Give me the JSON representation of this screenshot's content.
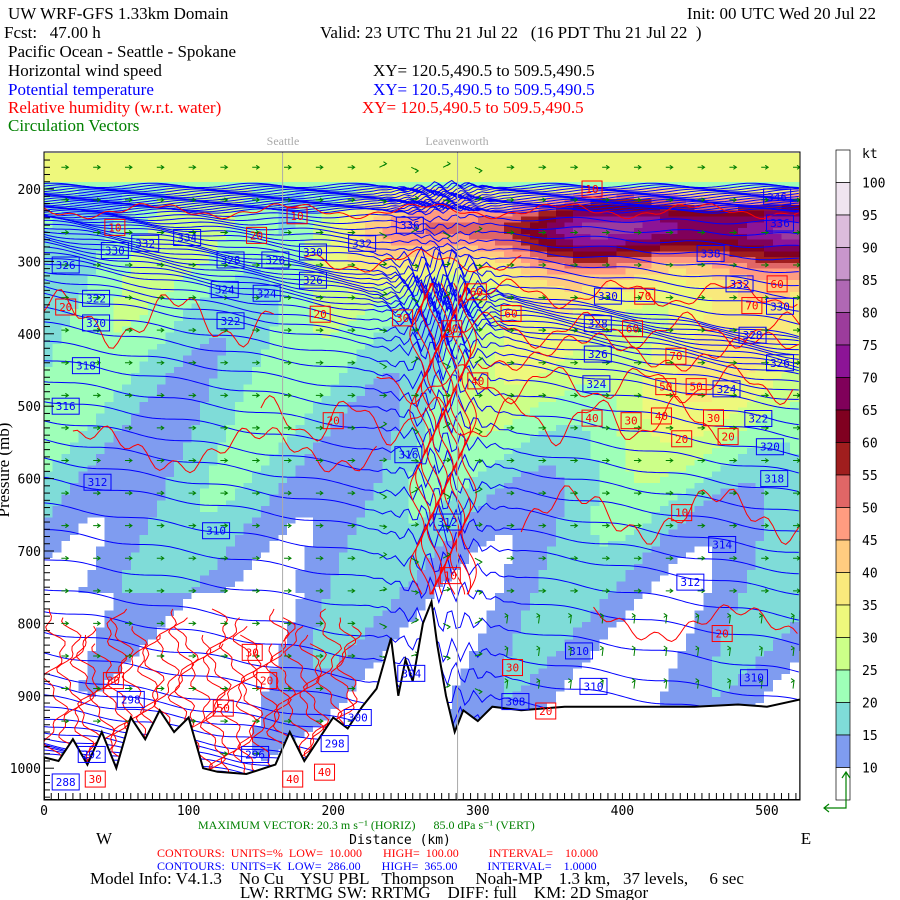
{
  "header": {
    "title": "UW WRF-GFS 1.33km Domain",
    "init": "Init: 00 UTC Wed 20 Jul 22",
    "fcst": "Fcst:   47.00 h",
    "valid": "Valid: 23 UTC Thu 21 Jul 22   (16 PDT Thu 21 Jul 22  )",
    "route": "Pacific Ocean - Seattle - Spokane",
    "field_wind": "Horizontal wind speed",
    "field_theta": "Potential temperature",
    "field_rh": "Relative humidity (w.r.t. water)",
    "field_vectors": "Circulation Vectors",
    "xy_wind": "XY= 120.5,490.5 to 509.5,490.5",
    "xy_theta": "XY= 120.5,490.5 to 509.5,490.5",
    "xy_rh": "XY= 120.5,490.5 to 509.5,490.5"
  },
  "colors": {
    "wind_text": "#000000",
    "theta": "#0000ff",
    "rh": "#ff0000",
    "vectors": "#008000",
    "terrain": "#ffffff",
    "markers": "#aaaaaa"
  },
  "footer": {
    "max_vector": "MAXIMUM VECTOR: 20.3 m s⁻¹ (HORIZ)      85.0 dPa s⁻¹ (VERT)",
    "rh_contours": "CONTOURS:  UNITS=%  LOW=  10.000       HIGH=  100.00          INTERVAL=    10.000",
    "theta_contours": "CONTOURS:  UNITS=K  LOW=  286.00       HIGH=  365.00          INTERVAL=    1.0000",
    "model_info": "Model Info: V4.1.3    No Cu    YSU PBL   Thompson     Noah-MP    1.3 km,   37 levels,     6 sec",
    "physics": "LW: RRTMG SW: RRTMG    DIFF: full    KM: 2D Smagor",
    "west": "W",
    "east": "E"
  },
  "chart_data": {
    "type": "heatmap",
    "subtype": "vertical cross-section",
    "xlabel": "Distance (km)",
    "ylabel": "Pressure (mb)",
    "xlim": [
      0,
      523
    ],
    "ylim": [
      1044,
      150
    ],
    "xticks": [
      0,
      100,
      200,
      300,
      400,
      500
    ],
    "yticks": [
      200,
      300,
      400,
      500,
      600,
      700,
      800,
      900,
      1000
    ],
    "ytick_labels": [
      "200",
      "300",
      "400",
      "500",
      "600",
      "700",
      "800",
      "900",
      "1000"
    ],
    "location_markers": [
      {
        "name": "Seattle",
        "km": 165
      },
      {
        "name": "Leavenworth",
        "km": 286
      }
    ],
    "colorbar": {
      "units": "kt",
      "levels": [
        10,
        15,
        20,
        25,
        30,
        35,
        40,
        45,
        50,
        55,
        60,
        65,
        70,
        75,
        80,
        85,
        90,
        95,
        100
      ],
      "colors": [
        "#ffffff",
        "#7f9cf0",
        "#7fdcd8",
        "#9effb8",
        "#ccff88",
        "#eef87c",
        "#f9e97c",
        "#ffcc80",
        "#ff9c80",
        "#e06666",
        "#a01e1e",
        "#800020",
        "#80005a",
        "#8c1496",
        "#9c3c9c",
        "#b068b4",
        "#c896cc",
        "#dcbcdc",
        "#f0e4f0",
        "#ffffff"
      ]
    },
    "theta_contours": {
      "units": "K",
      "low": 286,
      "high": 365,
      "interval": 1
    },
    "rh_contours": {
      "units": "%",
      "low": 10,
      "high": 100,
      "interval": 10
    },
    "surface_pressure": [
      [
        0,
        985
      ],
      [
        10,
        990
      ],
      [
        20,
        960
      ],
      [
        30,
        995
      ],
      [
        40,
        950
      ],
      [
        50,
        1000
      ],
      [
        60,
        930
      ],
      [
        70,
        960
      ],
      [
        80,
        920
      ],
      [
        90,
        950
      ],
      [
        100,
        930
      ],
      [
        110,
        1000
      ],
      [
        120,
        1005
      ],
      [
        140,
        1008
      ],
      [
        160,
        995
      ],
      [
        170,
        950
      ],
      [
        180,
        990
      ],
      [
        190,
        960
      ],
      [
        200,
        930
      ],
      [
        210,
        945
      ],
      [
        220,
        915
      ],
      [
        230,
        890
      ],
      [
        240,
        820
      ],
      [
        245,
        900
      ],
      [
        250,
        850
      ],
      [
        255,
        880
      ],
      [
        262,
        800
      ],
      [
        268,
        770
      ],
      [
        272,
        830
      ],
      [
        278,
        900
      ],
      [
        284,
        950
      ],
      [
        290,
        920
      ],
      [
        300,
        935
      ],
      [
        310,
        915
      ],
      [
        330,
        920
      ],
      [
        360,
        915
      ],
      [
        400,
        915
      ],
      [
        450,
        915
      ],
      [
        480,
        912
      ],
      [
        500,
        915
      ],
      [
        523,
        905
      ]
    ],
    "theta_labels": [
      {
        "km": 49,
        "p": 285,
        "v": "330"
      },
      {
        "km": 70,
        "p": 275,
        "v": "332"
      },
      {
        "km": 99,
        "p": 267,
        "v": "334"
      },
      {
        "km": 15,
        "p": 305,
        "v": "326"
      },
      {
        "km": 36,
        "p": 351,
        "v": "322"
      },
      {
        "km": 36,
        "p": 385,
        "v": "320"
      },
      {
        "km": 29,
        "p": 444,
        "v": "318"
      },
      {
        "km": 15,
        "p": 500,
        "v": "316"
      },
      {
        "km": 37,
        "p": 605,
        "v": "312"
      },
      {
        "km": 119,
        "p": 672,
        "v": "310"
      },
      {
        "km": 129,
        "p": 298,
        "v": "328"
      },
      {
        "km": 160,
        "p": 298,
        "v": "326"
      },
      {
        "km": 186,
        "p": 287,
        "v": "330"
      },
      {
        "km": 186,
        "p": 326,
        "v": "326"
      },
      {
        "km": 125,
        "p": 339,
        "v": "324"
      },
      {
        "km": 154,
        "p": 344,
        "v": "324"
      },
      {
        "km": 129,
        "p": 382,
        "v": "322"
      },
      {
        "km": 220,
        "p": 275,
        "v": "332"
      },
      {
        "km": 252,
        "p": 567,
        "v": "316"
      },
      {
        "km": 279,
        "p": 660,
        "v": "312"
      },
      {
        "km": 254,
        "p": 869,
        "v": "304"
      },
      {
        "km": 217,
        "p": 930,
        "v": "300"
      },
      {
        "km": 201,
        "p": 966,
        "v": "298"
      },
      {
        "km": 146,
        "p": 981,
        "v": "296"
      },
      {
        "km": 60,
        "p": 905,
        "v": "298"
      },
      {
        "km": 33,
        "p": 981,
        "v": "292"
      },
      {
        "km": 15,
        "p": 1019,
        "v": "288"
      },
      {
        "km": 326,
        "p": 908,
        "v": "308"
      },
      {
        "km": 370,
        "p": 838,
        "v": "310"
      },
      {
        "km": 380,
        "p": 887,
        "v": "310"
      },
      {
        "km": 491,
        "p": 875,
        "v": "310"
      },
      {
        "km": 447,
        "p": 743,
        "v": "312"
      },
      {
        "km": 469,
        "p": 691,
        "v": "314"
      },
      {
        "km": 505,
        "p": 600,
        "v": "318"
      },
      {
        "km": 502,
        "p": 556,
        "v": "320"
      },
      {
        "km": 494,
        "p": 517,
        "v": "322"
      },
      {
        "km": 509,
        "p": 440,
        "v": "326"
      },
      {
        "km": 490,
        "p": 402,
        "v": "328"
      },
      {
        "km": 509,
        "p": 362,
        "v": "330"
      },
      {
        "km": 481,
        "p": 331,
        "v": "332"
      },
      {
        "km": 461,
        "p": 289,
        "v": "338"
      },
      {
        "km": 383,
        "p": 386,
        "v": "328"
      },
      {
        "km": 383,
        "p": 428,
        "v": "326"
      },
      {
        "km": 382,
        "p": 469,
        "v": "324"
      },
      {
        "km": 472,
        "p": 476,
        "v": "324"
      },
      {
        "km": 253,
        "p": 250,
        "v": "336"
      },
      {
        "km": 507,
        "p": 211,
        "v": "346"
      },
      {
        "km": 509,
        "p": 247,
        "v": "336"
      },
      {
        "km": 390,
        "p": 348,
        "v": "330"
      }
    ],
    "rh_labels": [
      {
        "km": 49,
        "p": 253,
        "v": "10"
      },
      {
        "km": 175,
        "p": 237,
        "v": "10"
      },
      {
        "km": 15,
        "p": 363,
        "v": "20"
      },
      {
        "km": 147,
        "p": 311,
        "v": "20"
      },
      {
        "km": 191,
        "p": 326,
        "v": "20"
      },
      {
        "km": 248,
        "p": 378,
        "v": "30"
      },
      {
        "km": 282,
        "p": 393,
        "v": "40"
      },
      {
        "km": 299,
        "p": 342,
        "v": "60"
      },
      {
        "km": 323,
        "p": 372,
        "v": "60"
      },
      {
        "km": 300,
        "p": 465,
        "v": "40"
      },
      {
        "km": 200,
        "p": 520,
        "v": "20"
      },
      {
        "km": 379,
        "p": 200,
        "v": "10"
      },
      {
        "km": 403,
        "p": 348,
        "v": "70"
      },
      {
        "km": 407,
        "p": 393,
        "v": "60"
      },
      {
        "km": 437,
        "p": 431,
        "v": "70"
      },
      {
        "km": 430,
        "p": 473,
        "v": "50"
      },
      {
        "km": 451,
        "p": 473,
        "v": "50"
      },
      {
        "km": 379,
        "p": 493,
        "v": "40"
      },
      {
        "km": 406,
        "p": 520,
        "v": "30"
      },
      {
        "km": 427,
        "p": 490,
        "v": "40"
      },
      {
        "km": 463,
        "p": 516,
        "v": "30"
      },
      {
        "km": 441,
        "p": 545,
        "v": "20"
      },
      {
        "km": 498,
        "p": 542,
        "v": "20"
      },
      {
        "km": 502,
        "p": 361,
        "v": "70"
      },
      {
        "km": 507,
        "p": 331,
        "v": "60"
      },
      {
        "km": 441,
        "p": 647,
        "v": "10"
      },
      {
        "km": 469,
        "p": 814,
        "v": "20"
      },
      {
        "km": 324,
        "p": 861,
        "v": "30"
      },
      {
        "km": 347,
        "p": 921,
        "v": "20"
      },
      {
        "km": 281,
        "p": 734,
        "v": "10"
      },
      {
        "km": 144,
        "p": 840,
        "v": "30"
      },
      {
        "km": 154,
        "p": 879,
        "v": "20"
      },
      {
        "km": 48,
        "p": 879,
        "v": "30"
      },
      {
        "km": 124,
        "p": 917,
        "v": "50"
      },
      {
        "km": 194,
        "p": 982,
        "v": "40"
      },
      {
        "km": 172,
        "p": 1015,
        "v": "40"
      },
      {
        "km": 23,
        "p": 1015,
        "v": "30"
      }
    ]
  }
}
